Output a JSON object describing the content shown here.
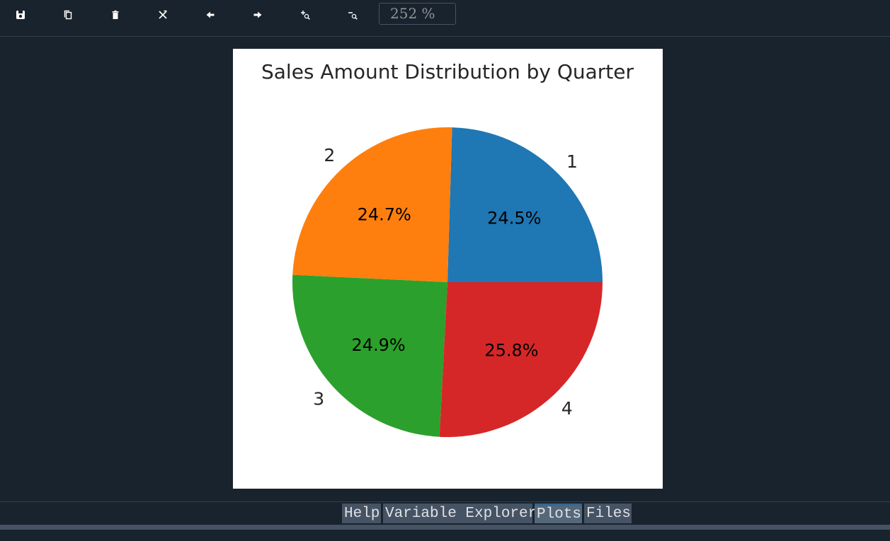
{
  "toolbar": {
    "buttons": [
      {
        "icon": "save-icon",
        "label": "Save"
      },
      {
        "icon": "copy-icon",
        "label": "Copy"
      },
      {
        "icon": "trash-icon",
        "label": "Remove"
      },
      {
        "icon": "remove-all-icon",
        "label": "Remove all"
      },
      {
        "icon": "arrow-left-icon",
        "label": "Previous"
      },
      {
        "icon": "arrow-right-icon",
        "label": "Next"
      },
      {
        "icon": "zoom-in-icon",
        "label": "Zoom in"
      },
      {
        "icon": "zoom-out-icon",
        "label": "Zoom out"
      }
    ],
    "zoom": "252 %"
  },
  "chart_data": {
    "type": "pie",
    "title": "Sales Amount Distribution by Quarter",
    "categories": [
      "1",
      "2",
      "3",
      "4"
    ],
    "values": [
      24.5,
      24.7,
      24.9,
      25.8
    ],
    "value_labels": [
      "24.5%",
      "24.7%",
      "24.9%",
      "25.8%"
    ],
    "colors": [
      "#1f77b4",
      "#ff7f0e",
      "#2ca02c",
      "#d62728"
    ],
    "start_angle_deg": 0,
    "direction": "counterclockwise"
  },
  "tabs": [
    {
      "label": "Help",
      "active": false
    },
    {
      "label": "Variable Explorer",
      "active": false
    },
    {
      "label": "Plots",
      "active": true
    },
    {
      "label": "Files",
      "active": false
    }
  ]
}
